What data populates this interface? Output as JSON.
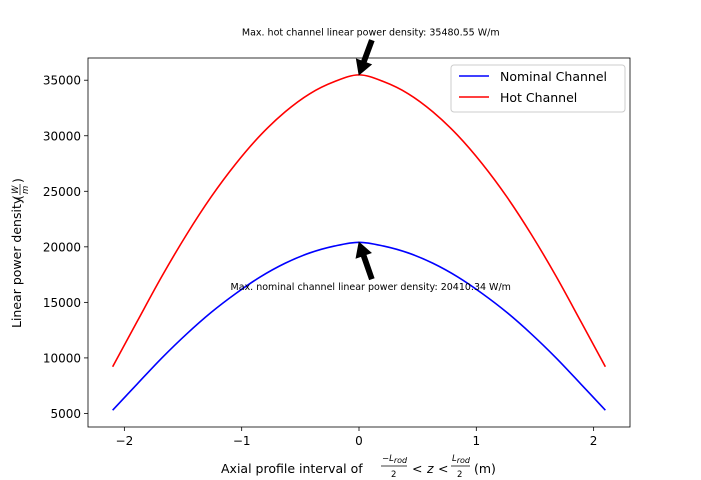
{
  "chart_data": {
    "type": "line",
    "x": [
      -2.1,
      -1.89,
      -1.68,
      -1.47,
      -1.26,
      -1.05,
      -0.84,
      -0.63,
      -0.42,
      -0.21,
      0.0,
      0.21,
      0.42,
      0.63,
      0.84,
      1.05,
      1.26,
      1.47,
      1.68,
      1.89,
      2.1
    ],
    "series": [
      {
        "name": "Nominal Channel",
        "color": "#0000ff",
        "values": [
          5290,
          7660,
          10000,
          12150,
          14100,
          15800,
          17300,
          18520,
          19450,
          20070,
          20410.34,
          20070,
          19450,
          18520,
          17300,
          15800,
          14100,
          12150,
          10000,
          7660,
          5290
        ]
      },
      {
        "name": "Hot Channel",
        "color": "#ff0000",
        "values": [
          9200,
          13300,
          17350,
          21100,
          24500,
          27480,
          30050,
          32150,
          33780,
          34870,
          35480.55,
          34870,
          33780,
          32150,
          30050,
          27480,
          24500,
          21100,
          17350,
          13300,
          9200
        ]
      }
    ],
    "xlim": [
      -2.31,
      2.31
    ],
    "ylim": [
      3780,
      37000
    ],
    "xticks": [
      -2,
      -1,
      0,
      1,
      2
    ],
    "xtick_labels": [
      "−2",
      "−1",
      "0",
      "1",
      "2"
    ],
    "yticks": [
      5000,
      10000,
      15000,
      20000,
      25000,
      30000,
      35000
    ],
    "ytick_labels": [
      "5000",
      "10000",
      "15000",
      "20000",
      "25000",
      "30000",
      "35000"
    ],
    "xlabel_prefix": "Axial profile interval of",
    "xlabel_unit": "(m)",
    "xlabel_math": {
      "minus": "−",
      "L": "L",
      "sub": "rod",
      "two": "2",
      "lt": "<",
      "z": "z"
    },
    "ylabel_prefix": "Linear power density",
    "ylabel_math": {
      "W": "W",
      "m": "m"
    },
    "legend_position": "upper right",
    "grid": false,
    "annotations": [
      {
        "text": "Max. hot channel linear power density: 35480.55 W/m",
        "target": [
          0.0,
          35480.55
        ],
        "text_pos": [
          0.1,
          39300
        ],
        "arrow_color": "#000000"
      },
      {
        "text": "Max. nominal channel linear power density: 20410.34 W/m",
        "target": [
          0.0,
          20410.34
        ],
        "text_pos": [
          0.1,
          16400
        ],
        "arrow_color": "#000000"
      }
    ]
  }
}
